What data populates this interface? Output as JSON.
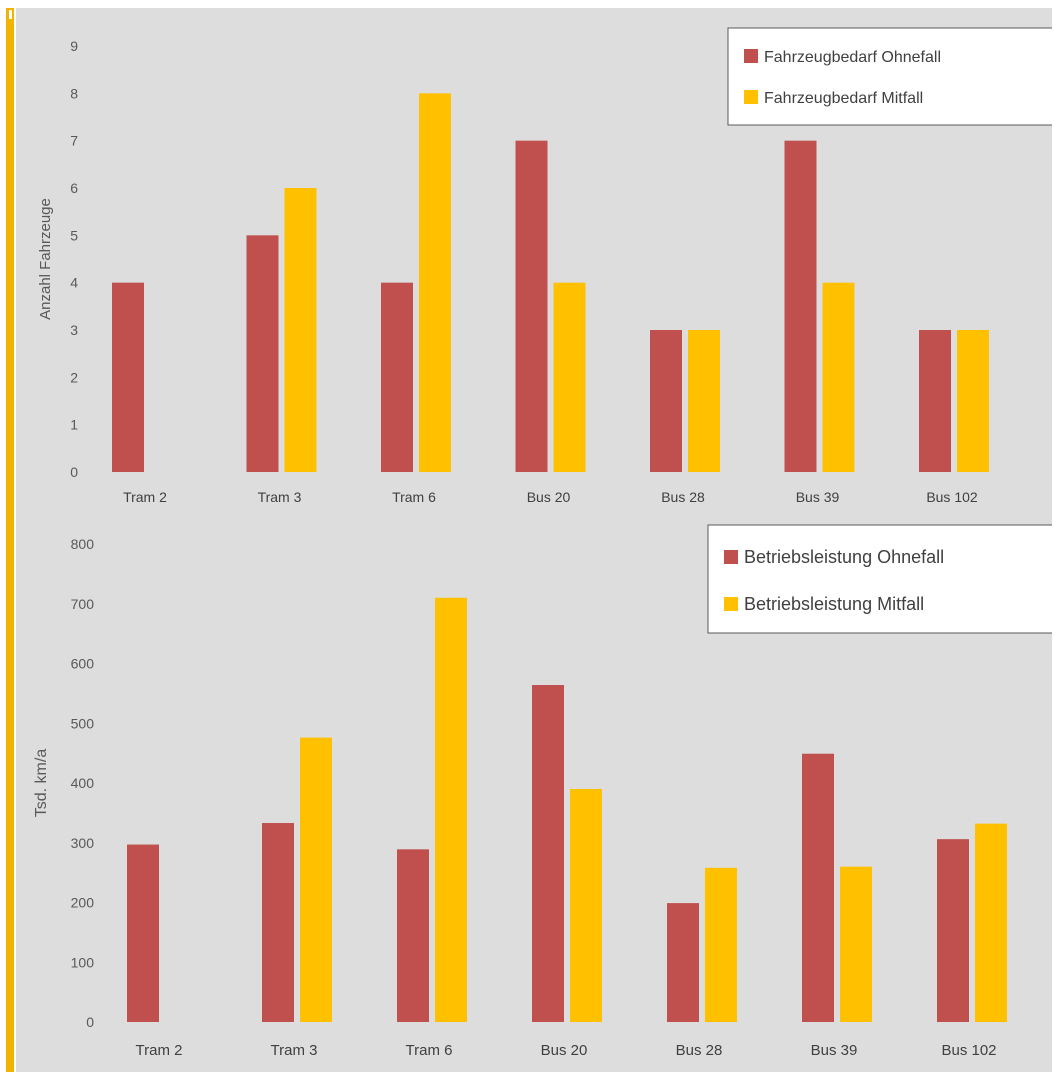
{
  "colors": {
    "ohnefall": "#c0504d",
    "mitfall": "#ffc000",
    "plot_bg": "#dddddd",
    "accent": "#f2b400"
  },
  "chart_data": [
    {
      "type": "bar",
      "categories": [
        "Tram 2",
        "Tram 3",
        "Tram 6",
        "Bus 20",
        "Bus 28",
        "Bus 39",
        "Bus 102"
      ],
      "series": [
        {
          "name": "Fahrzeugbedarf Ohnefall",
          "values": [
            4,
            5,
            4,
            7,
            3,
            7,
            3
          ]
        },
        {
          "name": "Fahrzeugbedarf Mitfall",
          "values": [
            null,
            6,
            8,
            4,
            3,
            4,
            3
          ]
        }
      ],
      "ylabel": "Anzahl Fahrzeuge",
      "xlabel": "",
      "title": "",
      "ylim": [
        0,
        9
      ],
      "yticks": [
        0,
        1,
        2,
        3,
        4,
        5,
        6,
        7,
        8,
        9
      ],
      "legend": "top-right",
      "grid": false
    },
    {
      "type": "bar",
      "categories": [
        "Tram 2",
        "Tram 3",
        "Tram 6",
        "Bus 20",
        "Bus 28",
        "Bus 39",
        "Bus 102"
      ],
      "series": [
        {
          "name": "Betriebsleistung Ohnefall",
          "values": [
            297,
            333,
            289,
            564,
            199,
            449,
            306
          ]
        },
        {
          "name": "Betriebsleistung Mitfall",
          "values": [
            null,
            476,
            710,
            390,
            258,
            260,
            332
          ]
        }
      ],
      "ylabel": "Tsd. km/a",
      "xlabel": "",
      "title": "",
      "ylim": [
        0,
        800
      ],
      "yticks": [
        0,
        100,
        200,
        300,
        400,
        500,
        600,
        700,
        800
      ],
      "legend": "top-right",
      "grid": false
    }
  ]
}
